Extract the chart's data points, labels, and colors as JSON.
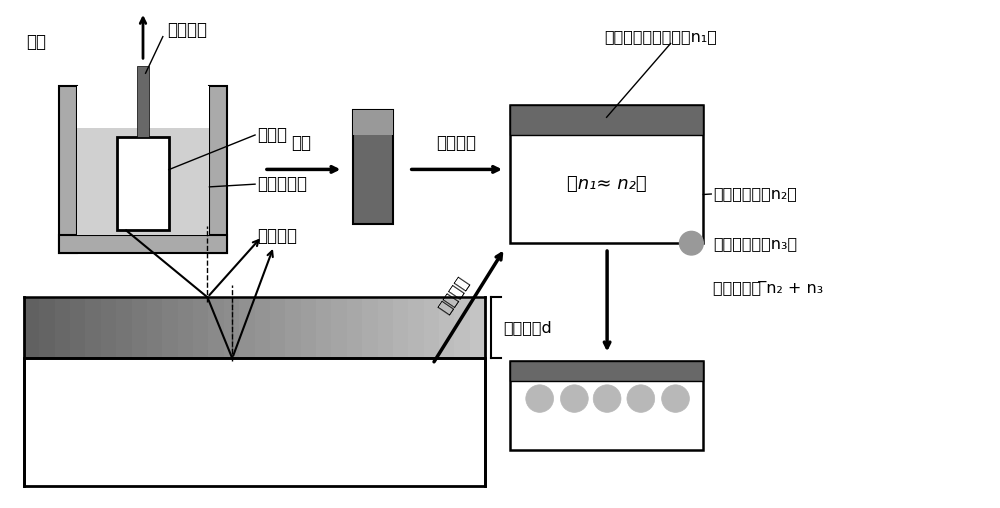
{
  "bg_color": "#ffffff",
  "gray_dark": "#686868",
  "gray_medium": "#999999",
  "gray_light": "#b8b8b8",
  "gray_lighter": "#d0d0d0",
  "gray_vessel": "#aaaaaa",
  "labels": {
    "tila_device": "提拉装置",
    "tila": "提拉",
    "carrier": "载玻片",
    "polymer_solution": "高分子溶液",
    "rest": "静置",
    "solvent_evaporate": "溶剂挥发",
    "polymer_coating": "高分子涂层（折射率n₁）",
    "n1_approx_n2": "（n₁≈ n₂）",
    "substrate": "基底（折射率n₂）",
    "solvent_label": "溶剂（折射率n₃）",
    "composite_ri": "复合折射率 ̅n₂ + n₃",
    "optical_interference": "光学干涉",
    "coating_thickness": "涂层厚度d",
    "solvent_evaporate2": "溶剂挥发"
  }
}
